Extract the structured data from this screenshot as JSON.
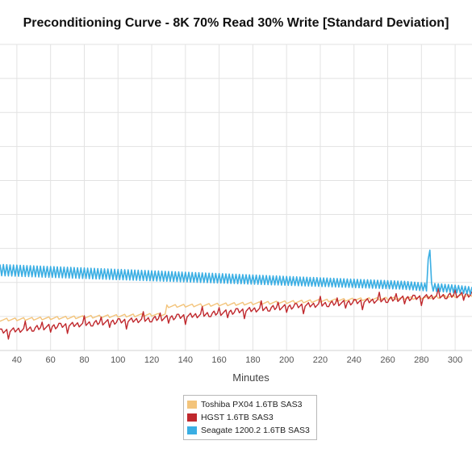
{
  "chart_data": {
    "type": "line",
    "title": "Preconditioning Curve - 8K 70% Read 30% Write [Standard Deviation]",
    "xlabel": "Minutes",
    "ylabel": "",
    "xlim": [
      30,
      310
    ],
    "ylim": [
      0,
      9
    ],
    "x_ticks": [
      "40",
      "60",
      "80",
      "100",
      "120",
      "140",
      "160",
      "180",
      "200",
      "220",
      "240",
      "260",
      "280",
      "300"
    ],
    "grid": true,
    "legend_position": "bottom-center",
    "series": [
      {
        "name": "Toshiba PX04 1.6TB SAS3",
        "color": "#f3c47b",
        "x": [
          30,
          60,
          90,
          120,
          128,
          129,
          160,
          200,
          240,
          280,
          310
        ],
        "y": [
          0.9,
          0.95,
          1.0,
          1.05,
          1.05,
          1.3,
          1.35,
          1.42,
          1.5,
          1.55,
          1.62
        ]
      },
      {
        "name": "HGST 1.6TB SAS3",
        "color": "#c0282d",
        "x": [
          30,
          60,
          90,
          120,
          150,
          180,
          210,
          240,
          270,
          300,
          310
        ],
        "y": [
          0.55,
          0.7,
          0.82,
          0.92,
          1.05,
          1.2,
          1.32,
          1.42,
          1.53,
          1.62,
          1.65
        ]
      },
      {
        "name": "Seagate 1200.2 1.6TB SAS3",
        "color": "#3aaee3",
        "x": [
          30,
          60,
          90,
          120,
          150,
          180,
          210,
          240,
          270,
          283,
          284,
          285,
          286,
          300,
          310
        ],
        "y": [
          2.25,
          2.2,
          2.15,
          2.1,
          2.05,
          2.0,
          1.95,
          1.9,
          1.85,
          1.8,
          2.5,
          3.0,
          1.8,
          1.75,
          1.7
        ]
      }
    ]
  }
}
